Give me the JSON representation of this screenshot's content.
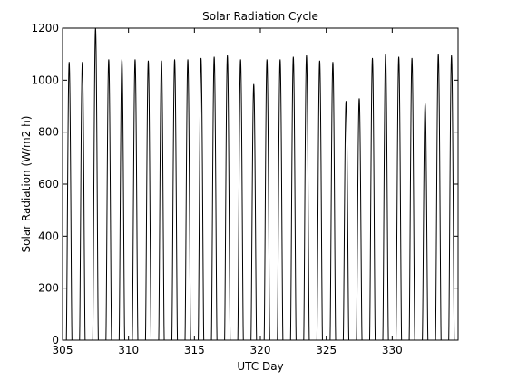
{
  "chart_data": {
    "type": "line",
    "title": "Solar Radiation Cycle",
    "xlabel": "UTC Day",
    "ylabel": "Solar Radiation (W/m2 h)",
    "xlim": [
      305,
      335
    ],
    "ylim": [
      0,
      1200
    ],
    "xticks": [
      305,
      310,
      315,
      320,
      325,
      330
    ],
    "yticks": [
      0,
      200,
      400,
      600,
      800,
      1000,
      1200
    ],
    "grid": false,
    "line_color": "#000000",
    "daily_peaks": [
      {
        "day": 305,
        "peak": 1070
      },
      {
        "day": 306,
        "peak": 1070
      },
      {
        "day": 307,
        "peak": 1200
      },
      {
        "day": 308,
        "peak": 1080
      },
      {
        "day": 309,
        "peak": 1080
      },
      {
        "day": 310,
        "peak": 1080
      },
      {
        "day": 311,
        "peak": 1075
      },
      {
        "day": 312,
        "peak": 1075
      },
      {
        "day": 313,
        "peak": 1080
      },
      {
        "day": 314,
        "peak": 1080
      },
      {
        "day": 315,
        "peak": 1085
      },
      {
        "day": 316,
        "peak": 1090
      },
      {
        "day": 317,
        "peak": 1095
      },
      {
        "day": 318,
        "peak": 1080
      },
      {
        "day": 319,
        "peak": 985
      },
      {
        "day": 320,
        "peak": 1080
      },
      {
        "day": 321,
        "peak": 1080
      },
      {
        "day": 322,
        "peak": 1090
      },
      {
        "day": 323,
        "peak": 1095
      },
      {
        "day": 324,
        "peak": 1075
      },
      {
        "day": 325,
        "peak": 1070
      },
      {
        "day": 326,
        "peak": 920
      },
      {
        "day": 327,
        "peak": 930
      },
      {
        "day": 328,
        "peak": 1085
      },
      {
        "day": 329,
        "peak": 1100
      },
      {
        "day": 330,
        "peak": 1090
      },
      {
        "day": 331,
        "peak": 1085
      },
      {
        "day": 332,
        "peak": 910
      },
      {
        "day": 333,
        "peak": 1100
      },
      {
        "day": 334,
        "peak": 1095
      }
    ]
  }
}
